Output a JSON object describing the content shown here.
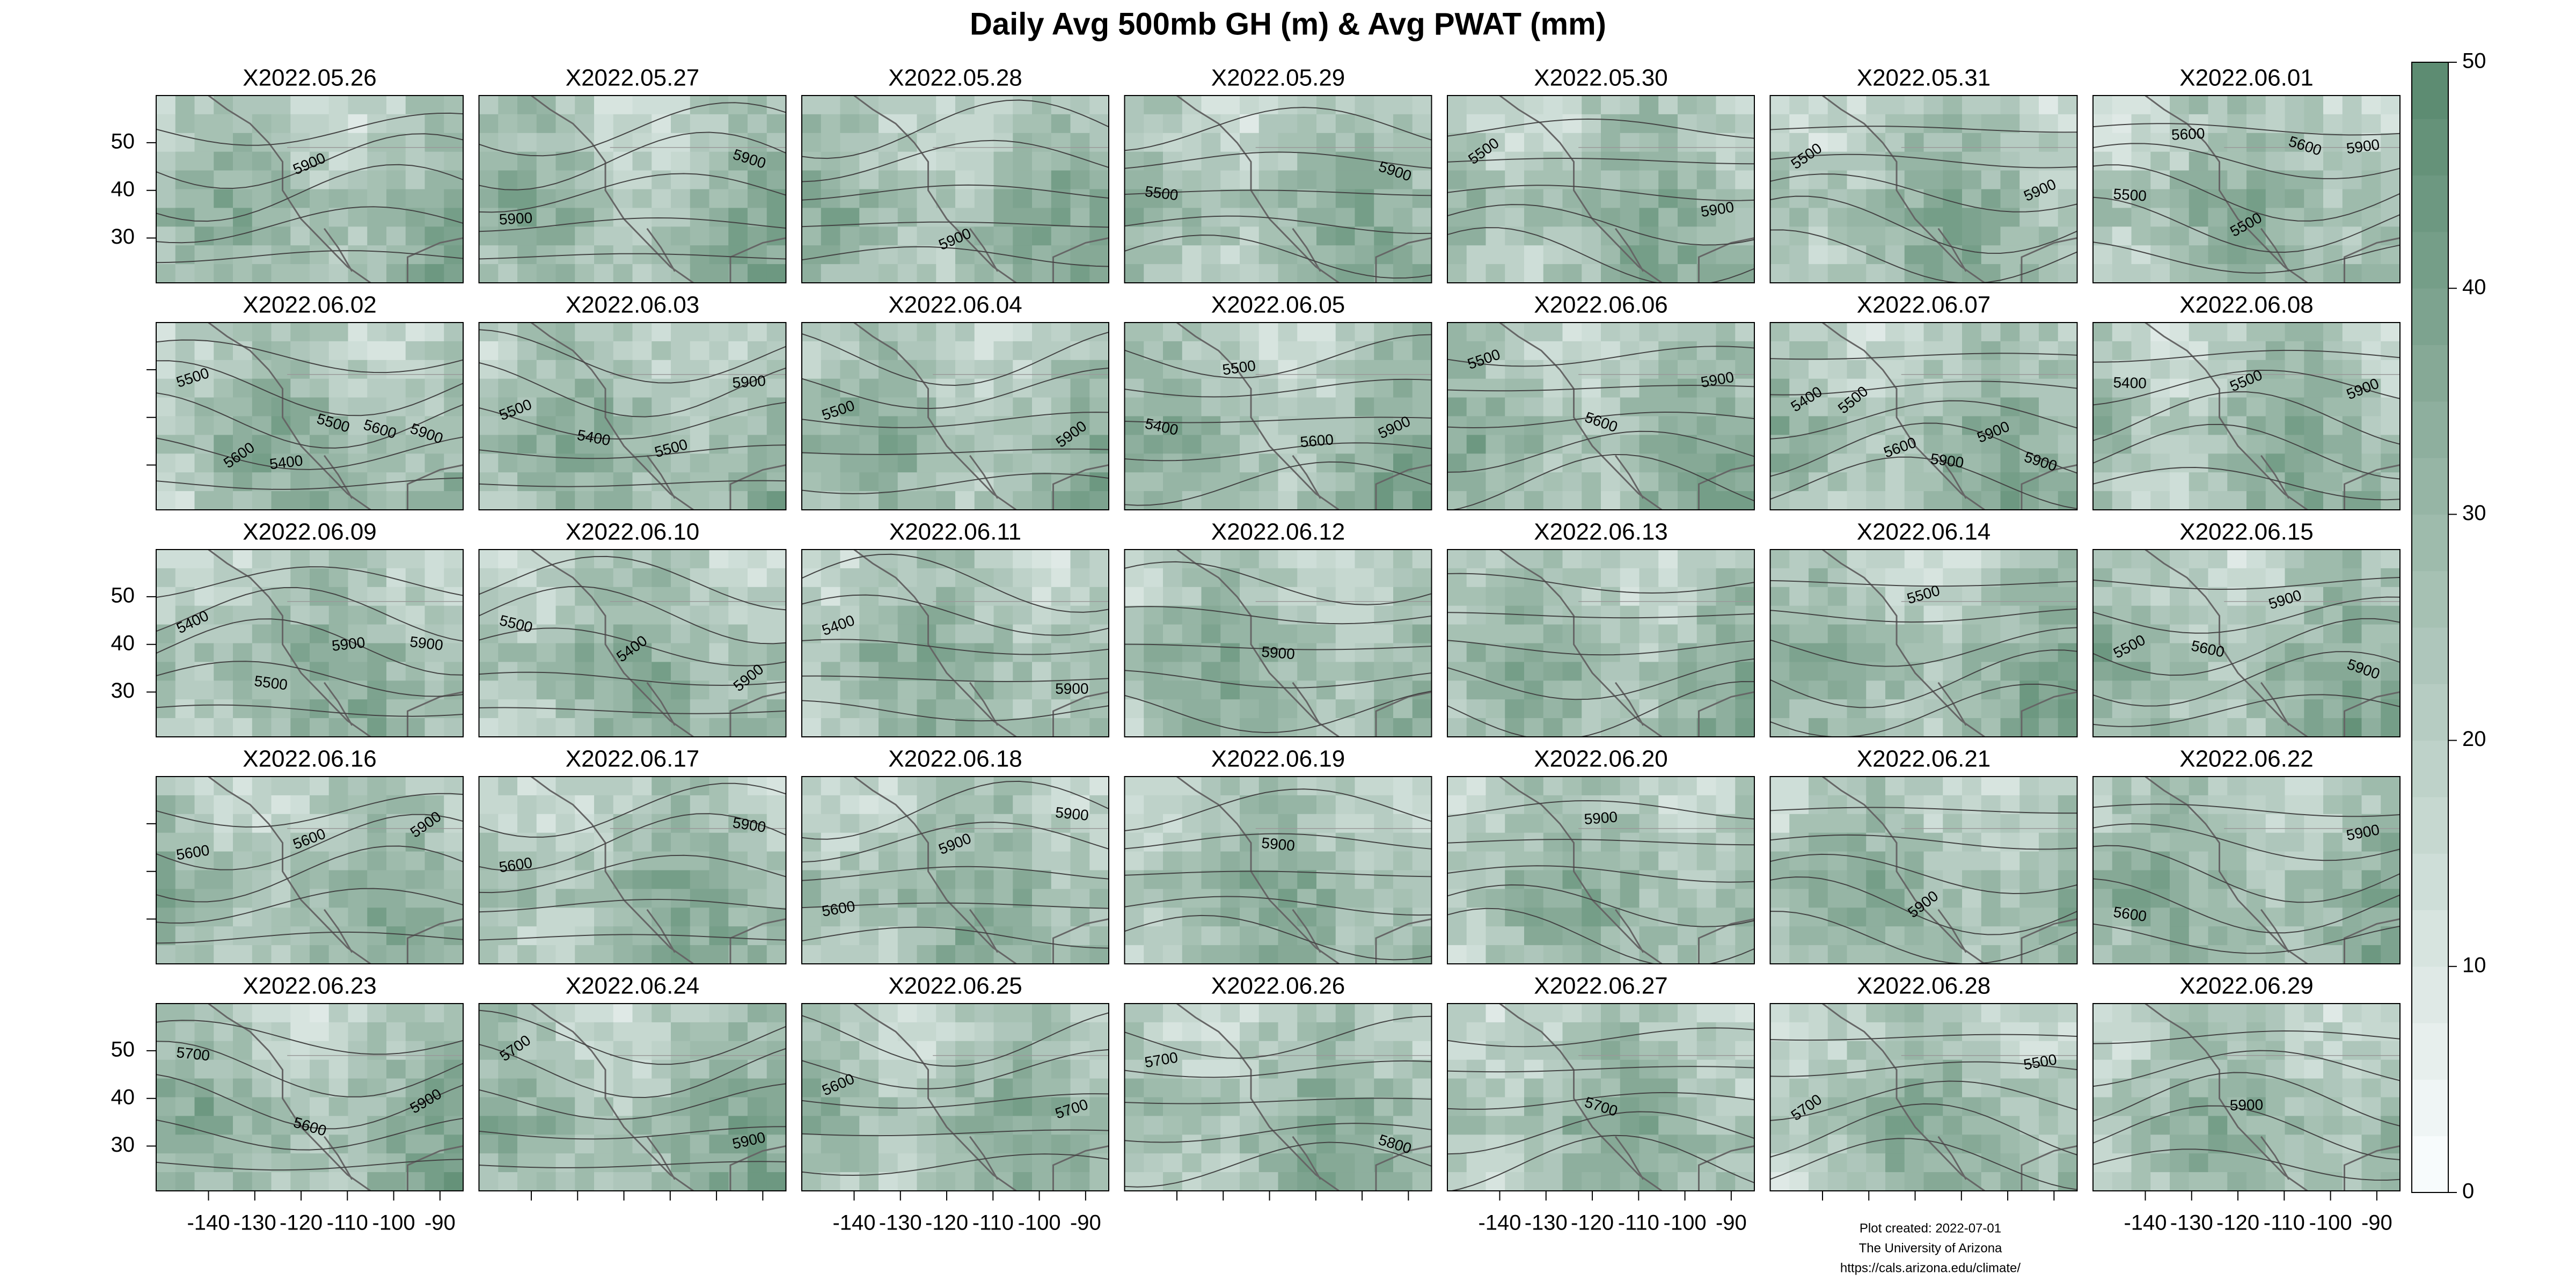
{
  "title": "Daily Avg 500mb GH (m) & Avg PWAT (mm)",
  "panels": [
    {
      "title": "X2022.05.26",
      "contour_labels": [
        "5900"
      ]
    },
    {
      "title": "X2022.05.27",
      "contour_labels": [
        "5900",
        "5900"
      ]
    },
    {
      "title": "X2022.05.28",
      "contour_labels": [
        "5900"
      ]
    },
    {
      "title": "X2022.05.29",
      "contour_labels": [
        "5500",
        "5900"
      ]
    },
    {
      "title": "X2022.05.30",
      "contour_labels": [
        "5500",
        "5900"
      ]
    },
    {
      "title": "X2022.05.31",
      "contour_labels": [
        "5500",
        "5900"
      ]
    },
    {
      "title": "X2022.06.01",
      "contour_labels": [
        "5500",
        "5600",
        "5500",
        "5600",
        "5900"
      ]
    },
    {
      "title": "X2022.06.02",
      "contour_labels": [
        "5500",
        "5600",
        "5400",
        "5500",
        "5600",
        "5900"
      ]
    },
    {
      "title": "X2022.06.03",
      "contour_labels": [
        "5500",
        "5400",
        "5500",
        "5900"
      ]
    },
    {
      "title": "X2022.06.04",
      "contour_labels": [
        "5500",
        "5900"
      ]
    },
    {
      "title": "X2022.06.05",
      "contour_labels": [
        "5400",
        "5500",
        "5600",
        "5900"
      ]
    },
    {
      "title": "X2022.06.06",
      "contour_labels": [
        "5500",
        "5600",
        "5900"
      ]
    },
    {
      "title": "X2022.06.07",
      "contour_labels": [
        "5400",
        "5500",
        "5600",
        "5900",
        "5900",
        "5900"
      ]
    },
    {
      "title": "X2022.06.08",
      "contour_labels": [
        "5400",
        "5500",
        "5900"
      ]
    },
    {
      "title": "X2022.06.09",
      "contour_labels": [
        "5400",
        "5500",
        "5900",
        "5900"
      ]
    },
    {
      "title": "X2022.06.10",
      "contour_labels": [
        "5500",
        "5400",
        "5900"
      ]
    },
    {
      "title": "X2022.06.11",
      "contour_labels": [
        "5400",
        "5900"
      ]
    },
    {
      "title": "X2022.06.12",
      "contour_labels": [
        "5900"
      ]
    },
    {
      "title": "X2022.06.13",
      "contour_labels": []
    },
    {
      "title": "X2022.06.14",
      "contour_labels": [
        "5500"
      ]
    },
    {
      "title": "X2022.06.15",
      "contour_labels": [
        "5500",
        "5600",
        "5900",
        "5900"
      ]
    },
    {
      "title": "X2022.06.16",
      "contour_labels": [
        "5600",
        "5600",
        "5900"
      ]
    },
    {
      "title": "X2022.06.17",
      "contour_labels": [
        "5600",
        "5900"
      ]
    },
    {
      "title": "X2022.06.18",
      "contour_labels": [
        "5600",
        "5900",
        "5900"
      ]
    },
    {
      "title": "X2022.06.19",
      "contour_labels": [
        "5900"
      ]
    },
    {
      "title": "X2022.06.20",
      "contour_labels": [
        "5900"
      ]
    },
    {
      "title": "X2022.06.21",
      "contour_labels": [
        "5900"
      ]
    },
    {
      "title": "X2022.06.22",
      "contour_labels": [
        "5600",
        "5900"
      ]
    },
    {
      "title": "X2022.06.23",
      "contour_labels": [
        "5700",
        "5600",
        "5900"
      ]
    },
    {
      "title": "X2022.06.24",
      "contour_labels": [
        "5700",
        "5900"
      ]
    },
    {
      "title": "X2022.06.25",
      "contour_labels": [
        "5600",
        "5700"
      ]
    },
    {
      "title": "X2022.06.26",
      "contour_labels": [
        "5700",
        "5800"
      ]
    },
    {
      "title": "X2022.06.27",
      "contour_labels": [
        "5700"
      ]
    },
    {
      "title": "X2022.06.28",
      "contour_labels": [
        "5700",
        "5500"
      ]
    },
    {
      "title": "X2022.06.29",
      "contour_labels": [
        "5900"
      ]
    }
  ],
  "axes": {
    "xlim": [
      -151.3,
      -85
    ],
    "ylim": [
      20.6,
      59.9
    ],
    "xticks": [
      -140,
      -130,
      -120,
      -110,
      -100,
      -90
    ],
    "yticks": [
      30,
      40,
      50
    ]
  },
  "colorbar": {
    "lim": [
      0,
      50
    ],
    "ticks": [
      0,
      10,
      20,
      30,
      40,
      50
    ],
    "levels": 20,
    "colors": [
      "#f7fbfc",
      "#5d8c72"
    ]
  },
  "footer": [
    "Plot created: 2022-07-01",
    "The University of Arizona",
    "https://cals.arizona.edu/climate/"
  ]
}
